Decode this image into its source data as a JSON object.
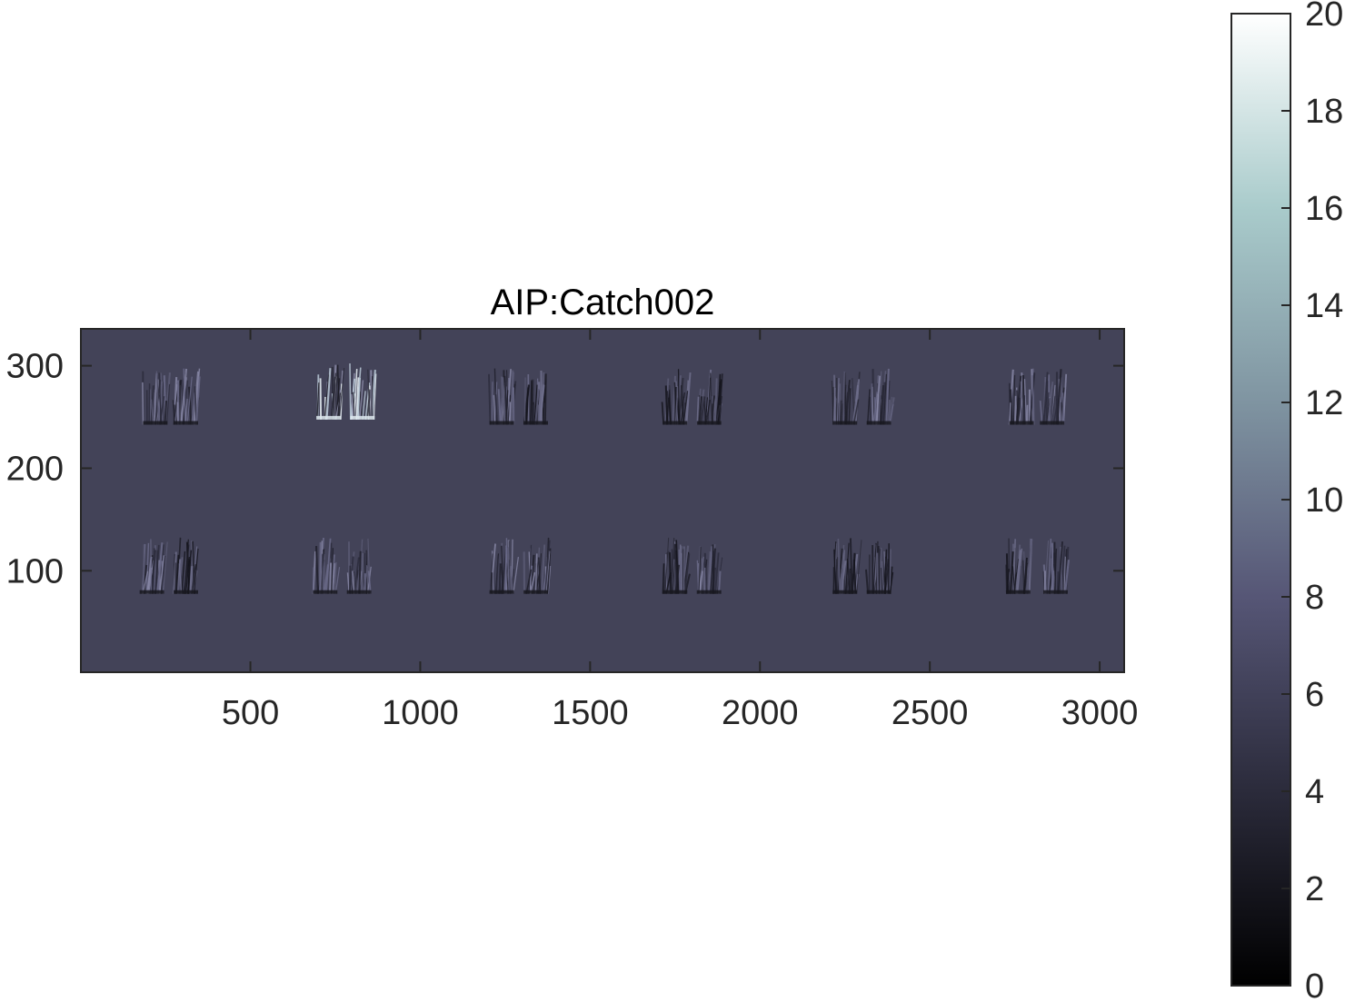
{
  "chart_data": {
    "type": "heatmap",
    "title": "AIP:Catch002",
    "xlabel": "",
    "ylabel": "",
    "xlim": [
      1,
      3072
    ],
    "ylim": [
      1,
      336
    ],
    "xticks": [
      500,
      1000,
      1500,
      2000,
      2500,
      3000
    ],
    "xtick_labels": [
      "500",
      "1000",
      "1500",
      "2000",
      "2500",
      "3000"
    ],
    "yticks": [
      100,
      200,
      300
    ],
    "ytick_labels": [
      "100",
      "200",
      "300"
    ],
    "background_value": 6.5,
    "colormap": "bone",
    "colorbar": {
      "range": [
        0,
        20
      ],
      "ticks": [
        0,
        2,
        4,
        6,
        8,
        10,
        12,
        14,
        16,
        18,
        20
      ],
      "tick_labels": [
        "0",
        "2",
        "4",
        "6",
        "8",
        "10",
        "12",
        "14",
        "16",
        "18",
        "20"
      ],
      "colors": [
        "#000000",
        "#2b2b3b",
        "#565676",
        "#7f94a1",
        "#a9cbcb",
        "#ffffff"
      ]
    },
    "grid": false,
    "bursts": [
      {
        "x": 220,
        "y": 270,
        "tone": "mixed"
      },
      {
        "x": 310,
        "y": 270,
        "tone": "mixed"
      },
      {
        "x": 730,
        "y": 275,
        "tone": "bright"
      },
      {
        "x": 830,
        "y": 275,
        "tone": "bright"
      },
      {
        "x": 1240,
        "y": 270,
        "tone": "mixed"
      },
      {
        "x": 1340,
        "y": 270,
        "tone": "dark"
      },
      {
        "x": 1750,
        "y": 270,
        "tone": "dark"
      },
      {
        "x": 1850,
        "y": 270,
        "tone": "dark"
      },
      {
        "x": 2250,
        "y": 270,
        "tone": "dark"
      },
      {
        "x": 2350,
        "y": 270,
        "tone": "mixed"
      },
      {
        "x": 2770,
        "y": 270,
        "tone": "mixed"
      },
      {
        "x": 2860,
        "y": 270,
        "tone": "mixed"
      },
      {
        "x": 210,
        "y": 105,
        "tone": "mixed"
      },
      {
        "x": 310,
        "y": 105,
        "tone": "dark"
      },
      {
        "x": 720,
        "y": 105,
        "tone": "mixed"
      },
      {
        "x": 820,
        "y": 105,
        "tone": "mixed"
      },
      {
        "x": 1240,
        "y": 105,
        "tone": "mixed"
      },
      {
        "x": 1340,
        "y": 105,
        "tone": "mixed"
      },
      {
        "x": 1750,
        "y": 105,
        "tone": "dark"
      },
      {
        "x": 1850,
        "y": 105,
        "tone": "mixed"
      },
      {
        "x": 2250,
        "y": 105,
        "tone": "dark"
      },
      {
        "x": 2350,
        "y": 105,
        "tone": "dark"
      },
      {
        "x": 2760,
        "y": 105,
        "tone": "dark"
      },
      {
        "x": 2870,
        "y": 105,
        "tone": "mixed"
      }
    ]
  }
}
